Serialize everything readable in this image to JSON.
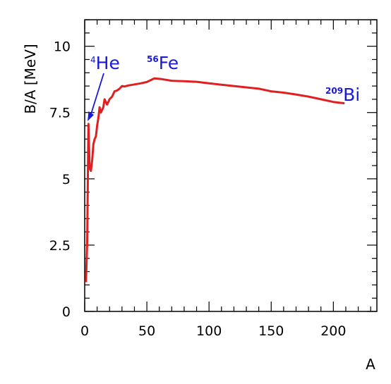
{
  "chart_data": {
    "type": "line",
    "xlabel": "A",
    "ylabel": "B/A [MeV]",
    "xlim": [
      0,
      235
    ],
    "ylim": [
      0,
      11
    ],
    "x_ticks": [
      0,
      50,
      100,
      150,
      200
    ],
    "y_ticks": [
      0,
      2.5,
      5,
      7.5,
      10
    ],
    "x_tick_labels": [
      "0",
      "50",
      "100",
      "150",
      "200"
    ],
    "y_tick_labels": [
      "0",
      "2.5",
      "5",
      "7.5",
      "10"
    ],
    "grid": false,
    "series": [
      {
        "color": "#e02020",
        "x": [
          1,
          2,
          3,
          4,
          5,
          6,
          7,
          8,
          9,
          10,
          11,
          12,
          13,
          14,
          15,
          16,
          17,
          18,
          19,
          20,
          22,
          24,
          26,
          28,
          30,
          32,
          35,
          40,
          45,
          50,
          56,
          62,
          70,
          80,
          90,
          100,
          110,
          120,
          130,
          140,
          150,
          160,
          170,
          180,
          190,
          200,
          209
        ],
        "y": [
          1.1,
          2.6,
          7.07,
          5.4,
          5.3,
          5.7,
          6.3,
          6.5,
          6.6,
          7.0,
          7.3,
          7.7,
          7.5,
          7.6,
          7.7,
          8.0,
          7.9,
          7.8,
          7.9,
          8.0,
          8.1,
          8.3,
          8.33,
          8.4,
          8.5,
          8.48,
          8.52,
          8.56,
          8.6,
          8.65,
          8.79,
          8.76,
          8.7,
          8.68,
          8.66,
          8.6,
          8.55,
          8.5,
          8.45,
          8.4,
          8.3,
          8.25,
          8.18,
          8.1,
          8.0,
          7.9,
          7.85
        ]
      }
    ],
    "annotations": [
      {
        "mass": "4",
        "element": "He",
        "x": 4
      },
      {
        "mass": "56",
        "element": "Fe",
        "x": 56
      },
      {
        "mass": "209",
        "element": "Bi",
        "x": 209
      }
    ]
  }
}
